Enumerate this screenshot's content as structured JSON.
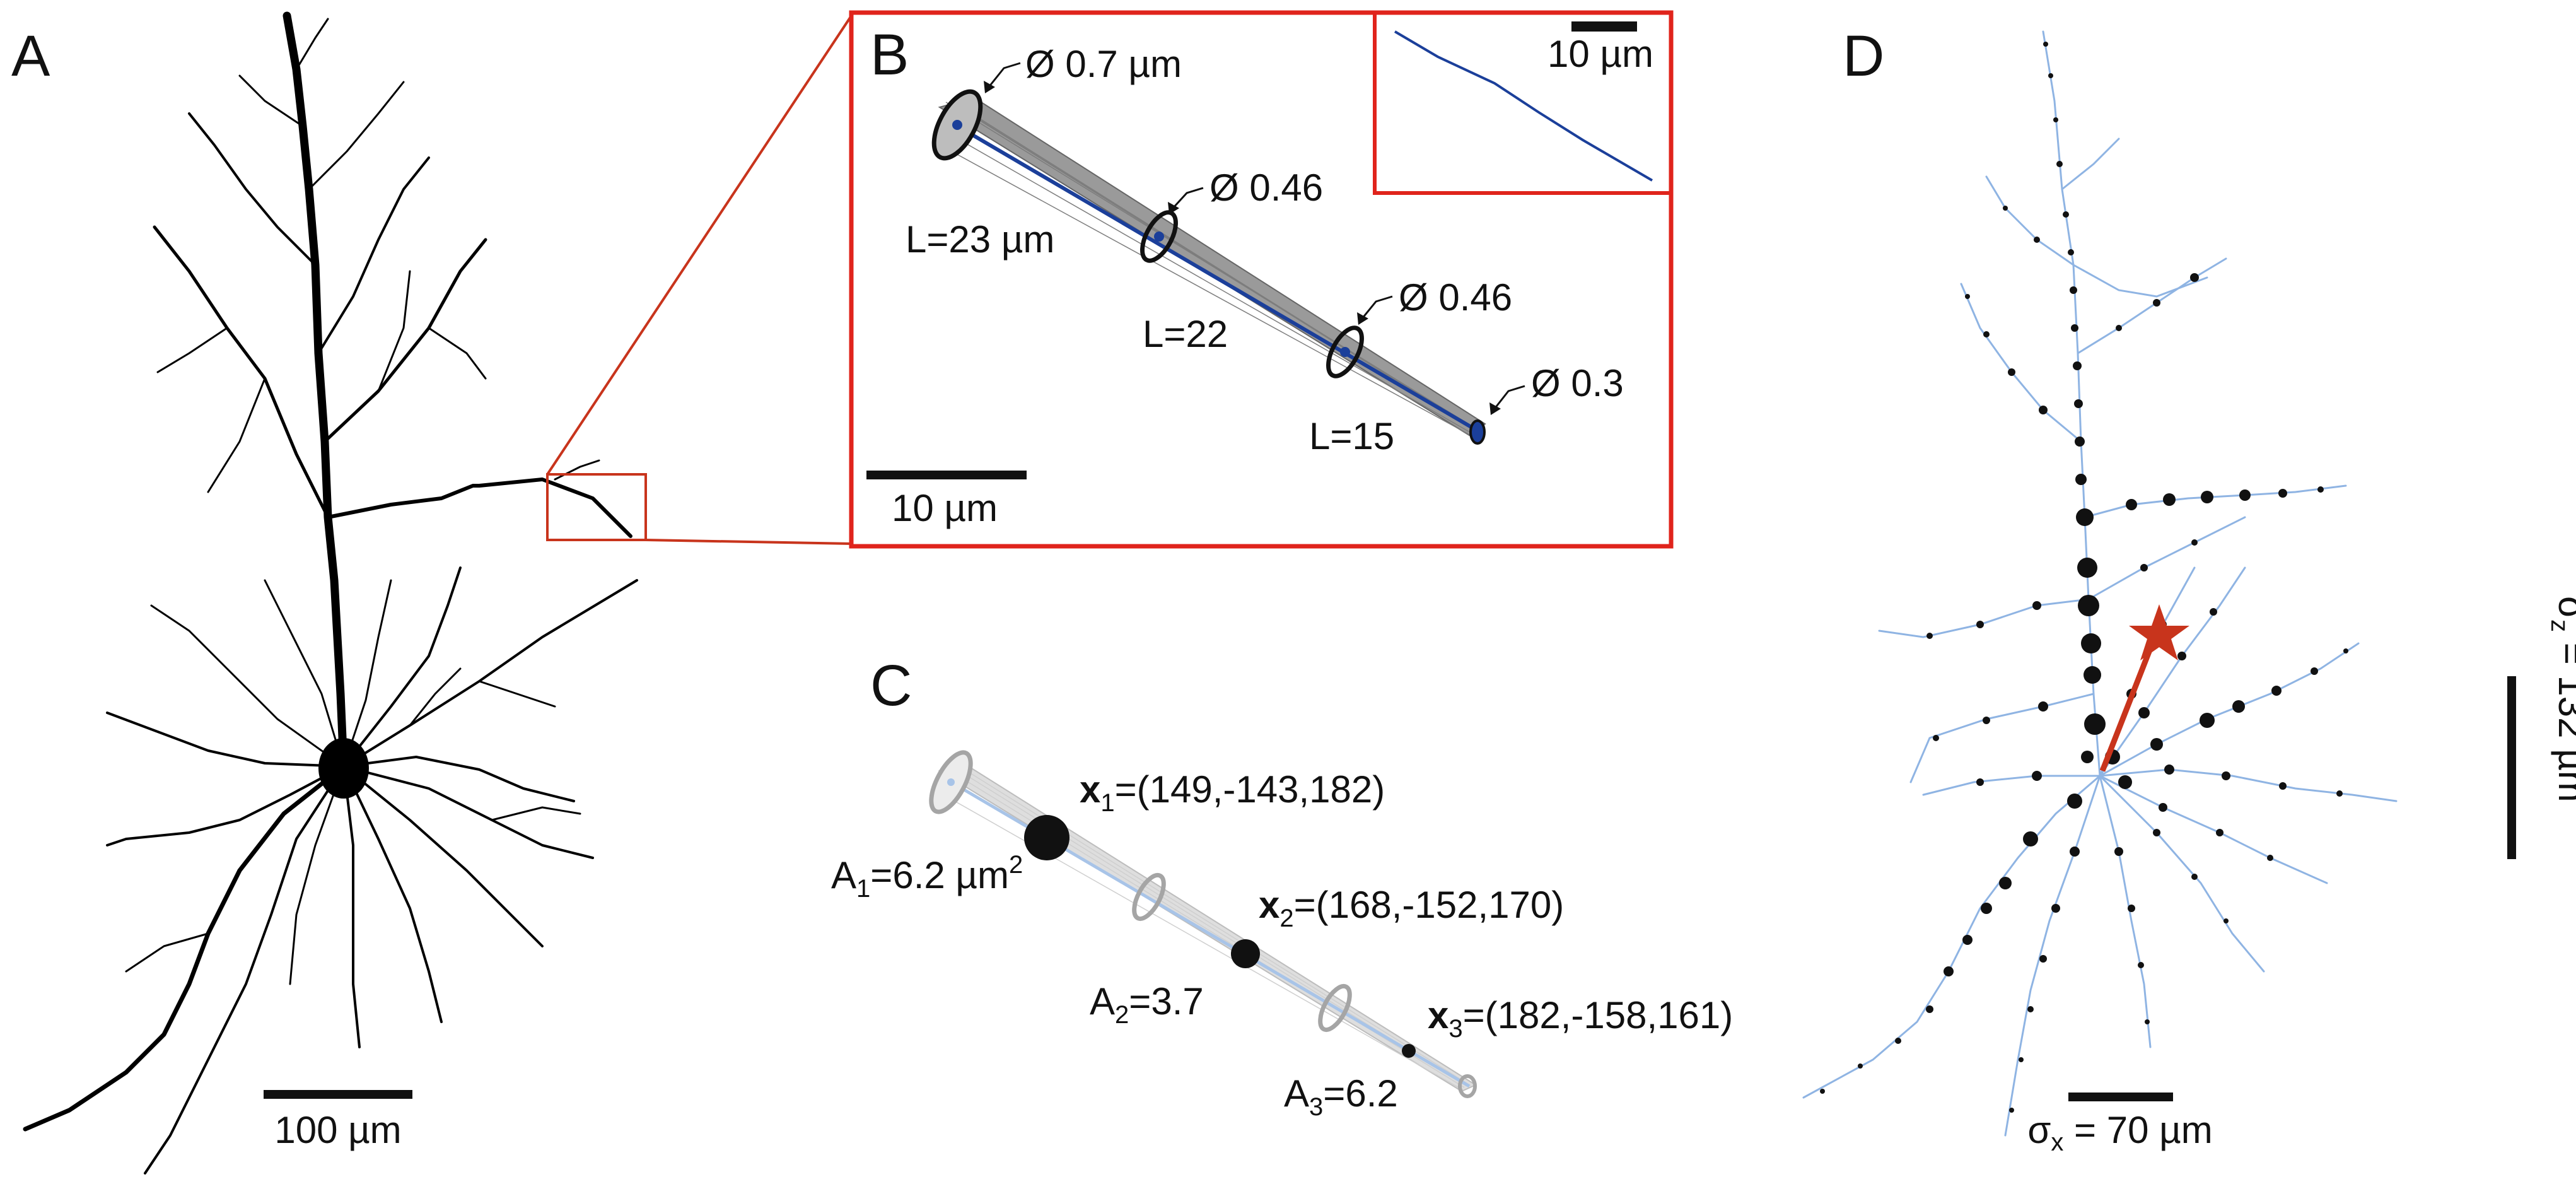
{
  "panels": {
    "A": {
      "letter": "A",
      "scale_bar": "100 µm"
    },
    "B": {
      "letter": "B",
      "diameters": [
        "Ø 0.7 µm",
        "Ø 0.46",
        "Ø 0.46",
        "Ø 0.3"
      ],
      "lengths": [
        "L=23 µm",
        "L=22",
        "L=15"
      ],
      "scale_bar": "10 µm",
      "inset_scale_bar": "10 µm"
    },
    "C": {
      "letter": "C",
      "points": [
        {
          "x_bold": "x",
          "sub": "1",
          "coord": "=(149,-143,182)",
          "a": "A",
          "a_sub": "1",
          "a_val": "=6.2 µm",
          "a_sup": "2"
        },
        {
          "x_bold": "x",
          "sub": "2",
          "coord": "=(168,-152,170)",
          "a": "A",
          "a_sub": "2",
          "a_val": "=3.7",
          "a_sup": ""
        },
        {
          "x_bold": "x",
          "sub": "3",
          "coord": "=(182,-158,161)",
          "a": "A",
          "a_sub": "3",
          "a_val": "=6.2",
          "a_sup": ""
        }
      ]
    },
    "D": {
      "letter": "D",
      "sigma_x": "σ",
      "sigma_x_sub": "x",
      "sigma_x_val": " = 70 µm",
      "sigma_z": "σ",
      "sigma_z_sub": "z",
      "sigma_z_val": " = 132 µm"
    }
  },
  "colors": {
    "accent_red": "#c8341c",
    "box_red": "#e0241c",
    "axon_blue": "#1b3f9a",
    "light_blue": "#8fb4e3",
    "cone_gray": "#9a9a9a",
    "cone_light": "#d9d9d9"
  }
}
